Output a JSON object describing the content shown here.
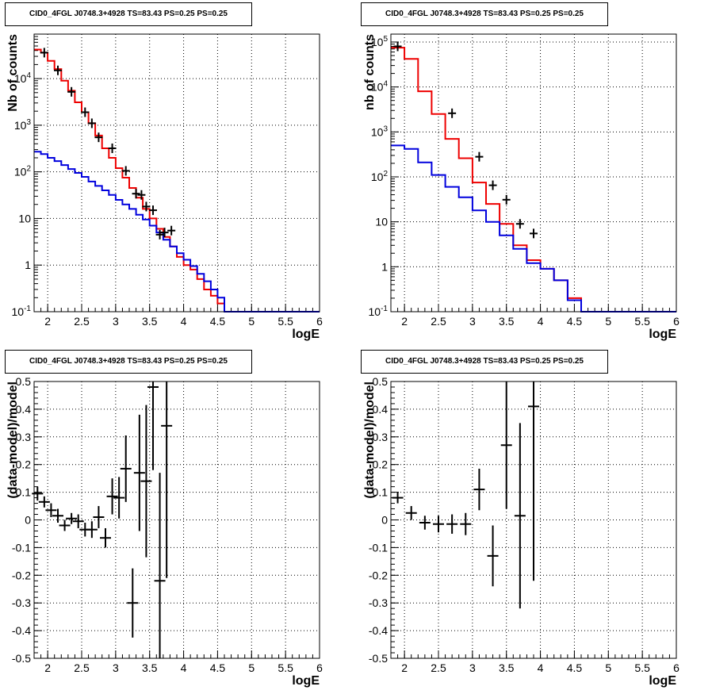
{
  "chart_data": [
    {
      "type": "line",
      "title": "CID0_4FGL J0748.3+4928 TS=83.43 PS=0.25 PS=0.25",
      "xlabel": "logE",
      "ylabel": "Nb of counts",
      "xlim": [
        1.8,
        6.0
      ],
      "ylim": [
        0.1,
        90000
      ],
      "y_scale": "log",
      "grid": true,
      "x_ticks": [
        "2",
        "2.5",
        "3",
        "3.5",
        "4",
        "4.5",
        "5",
        "5.5",
        "6"
      ],
      "y_ticks": [
        "10^-1",
        "1",
        "10",
        "10^2",
        "10^3",
        "10^4"
      ],
      "bin_edges": [
        1.8,
        1.9,
        2.0,
        2.1,
        2.2,
        2.3,
        2.4,
        2.5,
        2.6,
        2.7,
        2.8,
        2.9,
        3.0,
        3.1,
        3.2,
        3.3,
        3.4,
        3.5,
        3.6,
        3.7,
        3.8,
        3.9,
        4.0,
        4.1,
        4.2,
        4.3,
        4.4,
        4.5,
        4.6,
        4.7,
        4.8,
        4.9,
        5.0,
        5.1,
        5.2,
        5.3,
        5.4,
        5.5,
        5.6,
        5.7,
        5.8,
        5.9,
        6.0
      ],
      "series": [
        {
          "color": "#ee0000",
          "values": [
            42000,
            36000,
            24000,
            16000,
            9000,
            5500,
            3100,
            1900,
            1100,
            600,
            320,
            200,
            120,
            75,
            45,
            28,
            16,
            10,
            6,
            4,
            2.5,
            1.5,
            1.0,
            0.8,
            0.5,
            0.3,
            0.22,
            0.15,
            0.09,
            0.09,
            0.09,
            0.09,
            0.09,
            0.09,
            0.09,
            0.09,
            0.09,
            0.09,
            0.09,
            0.09,
            0.09,
            0.09
          ]
        },
        {
          "color": "#0000dd",
          "values": [
            270,
            240,
            200,
            170,
            140,
            115,
            95,
            78,
            62,
            50,
            40,
            32,
            25,
            20,
            16,
            12,
            9.5,
            7,
            5,
            3.5,
            2.5,
            1.8,
            1.3,
            0.95,
            0.65,
            0.45,
            0.3,
            0.2,
            0.1,
            0.1,
            0.1,
            0.1,
            0.1,
            0.1,
            0.1,
            0.1,
            0.1,
            0.1,
            0.1,
            0.1,
            0.1,
            0.1
          ]
        }
      ],
      "data_points": [
        {
          "x": 1.95,
          "y": 36000
        },
        {
          "x": 2.15,
          "y": 15000
        },
        {
          "x": 2.35,
          "y": 5200
        },
        {
          "x": 2.55,
          "y": 1900
        },
        {
          "x": 2.65,
          "y": 1100
        },
        {
          "x": 2.75,
          "y": 550
        },
        {
          "x": 2.95,
          "y": 320
        },
        {
          "x": 3.15,
          "y": 105
        },
        {
          "x": 3.3,
          "y": 34
        },
        {
          "x": 3.38,
          "y": 32
        },
        {
          "x": 3.45,
          "y": 18
        },
        {
          "x": 3.55,
          "y": 15
        },
        {
          "x": 3.65,
          "y": 4.5
        },
        {
          "x": 3.72,
          "y": 5
        },
        {
          "x": 3.82,
          "y": 5.5
        }
      ]
    },
    {
      "type": "line",
      "title": "CID0_4FGL J0748.3+4928 TS=83.43 PS=0.25 PS=0.25",
      "xlabel": "logE",
      "ylabel": "nb of counts",
      "xlim": [
        1.8,
        6.0
      ],
      "ylim": [
        0.1,
        150000
      ],
      "y_scale": "log",
      "grid": true,
      "x_ticks": [
        "2",
        "2.5",
        "3",
        "3.5",
        "4",
        "4.5",
        "5",
        "5.5",
        "6"
      ],
      "y_ticks": [
        "10^-1",
        "1",
        "10",
        "10^2",
        "10^3",
        "10^4",
        "10^5"
      ],
      "bin_edges": [
        1.8,
        2.0,
        2.2,
        2.4,
        2.6,
        2.8,
        3.0,
        3.2,
        3.4,
        3.6,
        3.8,
        4.0,
        4.2,
        4.4,
        4.6,
        4.8,
        5.0,
        5.2,
        5.4,
        5.6,
        5.8,
        6.0
      ],
      "series": [
        {
          "color": "#ee0000",
          "values": [
            75000,
            42000,
            8000,
            2500,
            700,
            260,
            75,
            25,
            9,
            3,
            1.4,
            0.9,
            0.5,
            0.2,
            0.1,
            0.1,
            0.1,
            0.1,
            0.1,
            0.1,
            0.1
          ]
        },
        {
          "color": "#0000dd",
          "values": [
            500,
            420,
            210,
            110,
            60,
            35,
            18,
            10,
            5,
            2.5,
            1.2,
            0.9,
            0.5,
            0.18,
            0.1,
            0.1,
            0.1,
            0.1,
            0.1,
            0.1,
            0.1
          ]
        }
      ],
      "data_points": [
        {
          "x": 1.9,
          "y": 80000
        },
        {
          "x": 2.7,
          "y": 2600
        },
        {
          "x": 3.1,
          "y": 280
        },
        {
          "x": 3.3,
          "y": 65
        },
        {
          "x": 3.5,
          "y": 31
        },
        {
          "x": 3.7,
          "y": 9
        },
        {
          "x": 3.9,
          "y": 5.5
        }
      ]
    },
    {
      "type": "scatter",
      "title": "CID0_4FGL J0748.3+4928 TS=83.43 PS=0.25 PS=0.25",
      "xlabel": "logE",
      "ylabel": "(data-model)/model",
      "xlim": [
        1.8,
        6.0
      ],
      "ylim": [
        -0.5,
        0.5
      ],
      "grid": true,
      "x_ticks": [
        "2",
        "2.5",
        "3",
        "3.5",
        "4",
        "4.5",
        "5",
        "5.5",
        "6"
      ],
      "y_ticks": [
        "-0.5",
        "-0.4",
        "-0.3",
        "-0.2",
        "-0.1",
        "0",
        "0.1",
        "0.2",
        "0.3",
        "0.4",
        "0.5"
      ],
      "points": [
        {
          "x": 1.85,
          "y": 0.095,
          "err": 0.025
        },
        {
          "x": 1.95,
          "y": 0.065,
          "err": 0.02
        },
        {
          "x": 2.05,
          "y": 0.035,
          "err": 0.025
        },
        {
          "x": 2.15,
          "y": 0.015,
          "err": 0.025
        },
        {
          "x": 2.25,
          "y": -0.02,
          "err": 0.02
        },
        {
          "x": 2.35,
          "y": 0.005,
          "err": 0.02
        },
        {
          "x": 2.45,
          "y": -0.005,
          "err": 0.025
        },
        {
          "x": 2.55,
          "y": -0.035,
          "err": 0.025
        },
        {
          "x": 2.65,
          "y": -0.035,
          "err": 0.03
        },
        {
          "x": 2.75,
          "y": 0.01,
          "err": 0.04
        },
        {
          "x": 2.85,
          "y": -0.065,
          "err": 0.035
        },
        {
          "x": 2.95,
          "y": 0.085,
          "err": 0.065
        },
        {
          "x": 3.05,
          "y": 0.08,
          "err": 0.075
        },
        {
          "x": 3.15,
          "y": 0.185,
          "err": 0.12
        },
        {
          "x": 3.25,
          "y": -0.3,
          "err": 0.125
        },
        {
          "x": 3.35,
          "y": 0.17,
          "err": 0.21
        },
        {
          "x": 3.45,
          "y": 0.14,
          "err": 0.275
        },
        {
          "x": 3.55,
          "y": 0.48,
          "err": 0.3
        },
        {
          "x": 3.65,
          "y": -0.22,
          "err": 0.39
        },
        {
          "x": 3.75,
          "y": 0.34,
          "err": 0.55
        }
      ]
    },
    {
      "type": "scatter",
      "title": "CID0_4FGL J0748.3+4928 TS=83.43 PS=0.25 PS=0.25",
      "xlabel": "logE",
      "ylabel": "(data-model)/model",
      "xlim": [
        1.8,
        6.0
      ],
      "ylim": [
        -0.5,
        0.5
      ],
      "grid": true,
      "x_ticks": [
        "2",
        "2.5",
        "3",
        "3.5",
        "4",
        "4.5",
        "5",
        "5.5",
        "6"
      ],
      "y_ticks": [
        "-0.5",
        "-0.4",
        "-0.3",
        "-0.2",
        "-0.1",
        "0",
        "0.1",
        "0.2",
        "0.3",
        "0.4",
        "0.5"
      ],
      "points": [
        {
          "x": 1.9,
          "y": 0.08,
          "err": 0.02
        },
        {
          "x": 2.1,
          "y": 0.025,
          "err": 0.025
        },
        {
          "x": 2.3,
          "y": -0.01,
          "err": 0.025
        },
        {
          "x": 2.5,
          "y": -0.015,
          "err": 0.03
        },
        {
          "x": 2.7,
          "y": -0.015,
          "err": 0.035
        },
        {
          "x": 2.9,
          "y": -0.015,
          "err": 0.04
        },
        {
          "x": 3.1,
          "y": 0.11,
          "err": 0.075
        },
        {
          "x": 3.3,
          "y": -0.13,
          "err": 0.11
        },
        {
          "x": 3.5,
          "y": 0.27,
          "err": 0.23
        },
        {
          "x": 3.7,
          "y": 0.015,
          "err": 0.335
        },
        {
          "x": 3.9,
          "y": 0.41,
          "err": 0.63
        }
      ]
    }
  ]
}
